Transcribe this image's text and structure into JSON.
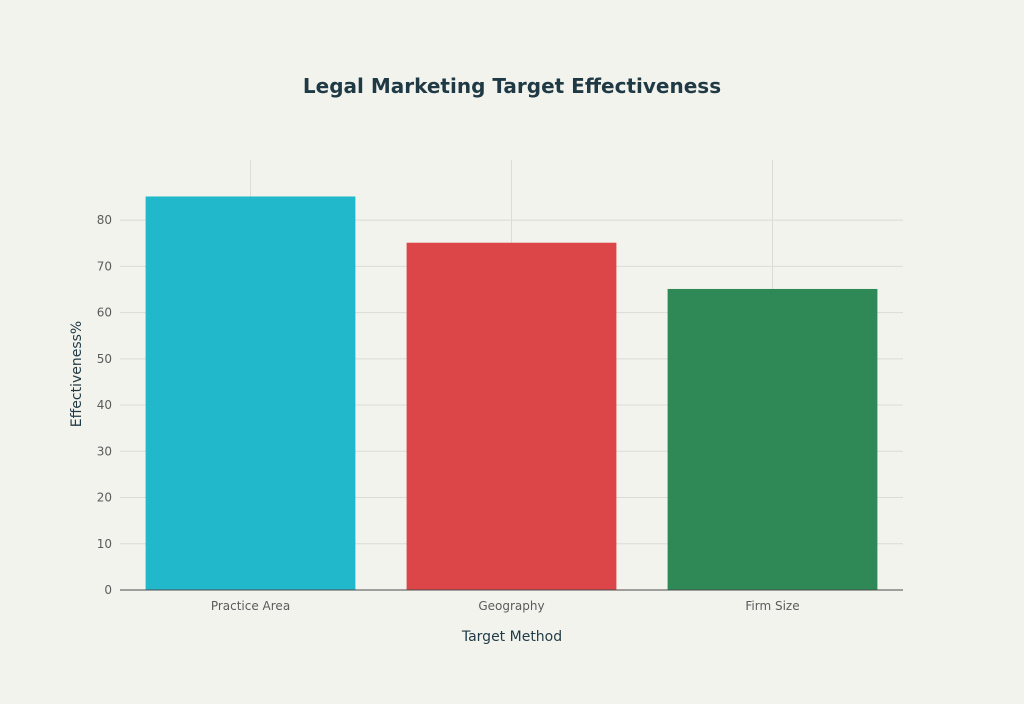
{
  "chart_data": {
    "type": "bar",
    "title": "Legal Marketing Target Effectiveness",
    "xlabel": "Target Method",
    "ylabel": "Effectiveness%",
    "categories": [
      "Practice Area",
      "Geography",
      "Firm Size"
    ],
    "values": [
      85,
      75,
      65
    ],
    "colors": [
      "#21b8cc",
      "#dd4648",
      "#2e8957"
    ],
    "ylim": [
      0,
      93
    ],
    "yticks": [
      0,
      10,
      20,
      30,
      40,
      50,
      60,
      70,
      80
    ],
    "grid": true,
    "legend": "none"
  }
}
